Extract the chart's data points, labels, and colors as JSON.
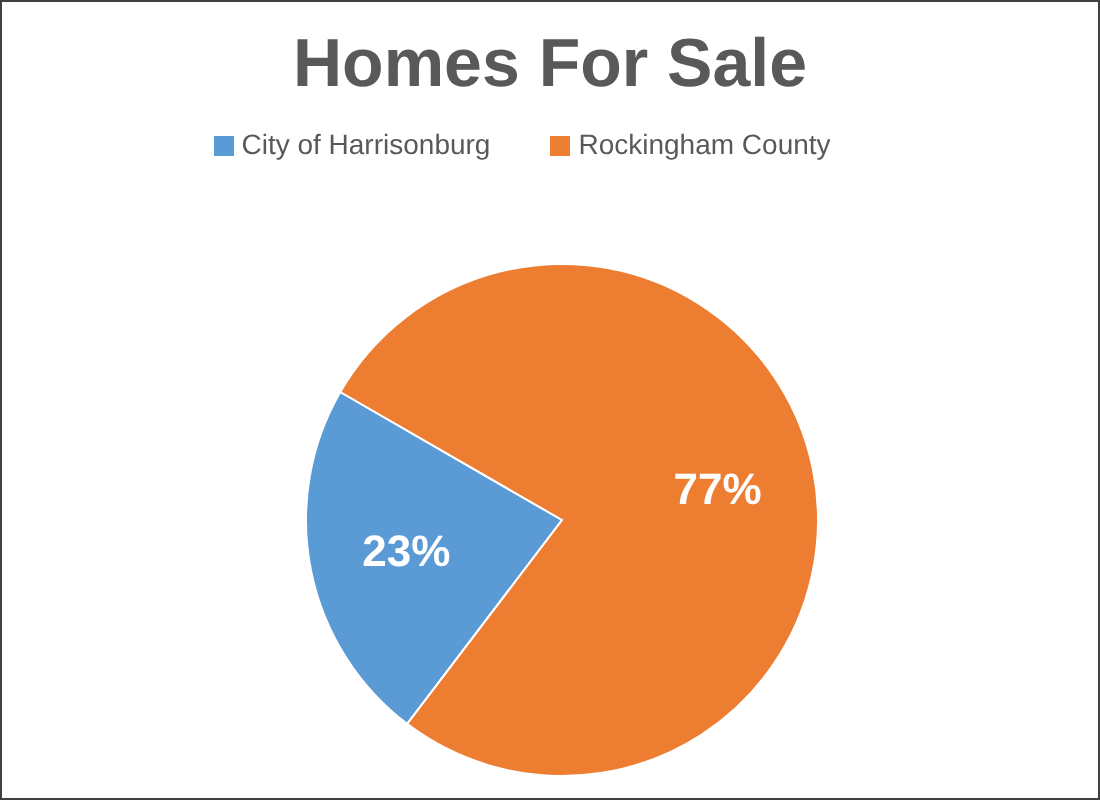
{
  "chart_data": {
    "type": "pie",
    "title": "Homes For Sale",
    "categories": [
      "City of Harrisonburg",
      "Rockingham County"
    ],
    "values": [
      23,
      77
    ],
    "colors": [
      "#5b9bd5",
      "#ed7d31"
    ],
    "value_labels": [
      "23%",
      "77%"
    ],
    "legend": "top"
  }
}
